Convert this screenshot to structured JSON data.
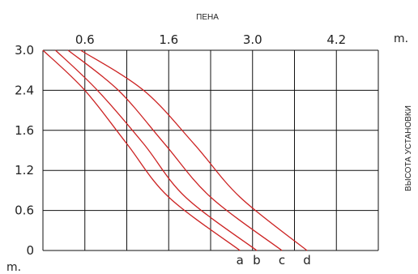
{
  "chart_data": {
    "type": "line",
    "title": "ПЕНА",
    "ylabel": "ВЫСОТА УСТАНОВКИ",
    "x_unit": "m.",
    "y_unit": "m.",
    "x_tick_labels": [
      "0.6",
      "1.6",
      "3.0",
      "4.2"
    ],
    "y_tick_labels": [
      "3.0",
      "2.4",
      "1.6",
      "1.2",
      "0.6",
      "0"
    ],
    "grid": true,
    "line_color": "#cc2222",
    "series": [
      {
        "name": "a",
        "points": [
          [
            0,
            3.0
          ],
          [
            1,
            2.4
          ],
          [
            2,
            1.6
          ],
          [
            3,
            0.8
          ],
          [
            4.7,
            0
          ]
        ]
      },
      {
        "name": "b",
        "points": [
          [
            0.3,
            3.0
          ],
          [
            1.3,
            2.4
          ],
          [
            2.4,
            1.6
          ],
          [
            3.4,
            0.8
          ],
          [
            5.1,
            0
          ]
        ]
      },
      {
        "name": "c",
        "points": [
          [
            0.6,
            3.0
          ],
          [
            1.8,
            2.4
          ],
          [
            2.9,
            1.6
          ],
          [
            4.0,
            0.8
          ],
          [
            5.7,
            0
          ]
        ]
      },
      {
        "name": "d",
        "points": [
          [
            0.9,
            3.0
          ],
          [
            2.4,
            2.4
          ],
          [
            3.6,
            1.6
          ],
          [
            4.7,
            0.8
          ],
          [
            6.3,
            0
          ]
        ]
      }
    ]
  }
}
